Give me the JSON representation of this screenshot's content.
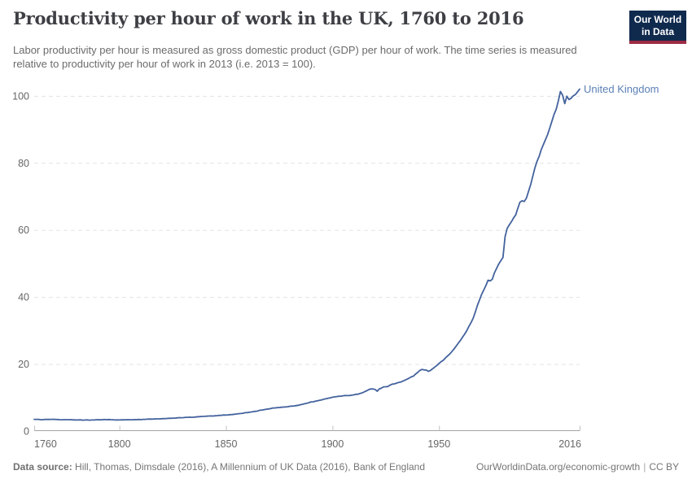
{
  "header": {
    "title": "Productivity per hour of work in the UK, 1760 to 2016",
    "subtitle": "Labor productivity per hour is measured as gross domestic product (GDP) per hour of work. The time series is measured relative to productivity per hour of work in 2013 (i.e. 2013 = 100)."
  },
  "logo": {
    "line1": "Our World",
    "line2": "in Data",
    "bg_color": "#102a4e",
    "stripe_color": "#9d2b45"
  },
  "chart_data": {
    "type": "line",
    "title": "Productivity per hour of work in the UK, 1760 to 2016",
    "xlabel": "",
    "ylabel": "",
    "xlim": [
      1760,
      2016
    ],
    "ylim": [
      0,
      105
    ],
    "x_ticks": [
      1760,
      1800,
      1850,
      1900,
      1950,
      2016
    ],
    "y_ticks": [
      0,
      20,
      40,
      60,
      80,
      100
    ],
    "grid": "horizontal-dashed",
    "legend_position": "end-of-line",
    "gridline_color": "#e3e3e3",
    "axis_color": "#a3a3a3",
    "tick_label_color": "#666666",
    "series": [
      {
        "name": "United Kingdom",
        "color": "#43629d",
        "label_color": "#5b80b5",
        "points": [
          [
            1760,
            3.5
          ],
          [
            1764,
            3.4
          ],
          [
            1768,
            3.5
          ],
          [
            1772,
            3.4
          ],
          [
            1776,
            3.4
          ],
          [
            1780,
            3.3
          ],
          [
            1784,
            3.3
          ],
          [
            1788,
            3.3
          ],
          [
            1792,
            3.4
          ],
          [
            1796,
            3.4
          ],
          [
            1800,
            3.3
          ],
          [
            1804,
            3.4
          ],
          [
            1808,
            3.4
          ],
          [
            1812,
            3.5
          ],
          [
            1816,
            3.6
          ],
          [
            1820,
            3.7
          ],
          [
            1824,
            3.8
          ],
          [
            1828,
            4.0
          ],
          [
            1832,
            4.1
          ],
          [
            1836,
            4.2
          ],
          [
            1840,
            4.4
          ],
          [
            1844,
            4.5
          ],
          [
            1848,
            4.7
          ],
          [
            1852,
            4.9
          ],
          [
            1856,
            5.2
          ],
          [
            1860,
            5.5
          ],
          [
            1864,
            5.9
          ],
          [
            1868,
            6.4
          ],
          [
            1870,
            6.6
          ],
          [
            1872,
            6.9
          ],
          [
            1874,
            7.0
          ],
          [
            1876,
            7.1
          ],
          [
            1878,
            7.2
          ],
          [
            1880,
            7.4
          ],
          [
            1882,
            7.5
          ],
          [
            1884,
            7.7
          ],
          [
            1886,
            8.0
          ],
          [
            1888,
            8.3
          ],
          [
            1890,
            8.7
          ],
          [
            1892,
            8.9
          ],
          [
            1894,
            9.2
          ],
          [
            1896,
            9.5
          ],
          [
            1898,
            9.8
          ],
          [
            1900,
            10.1
          ],
          [
            1902,
            10.3
          ],
          [
            1904,
            10.4
          ],
          [
            1906,
            10.6
          ],
          [
            1908,
            10.6
          ],
          [
            1910,
            10.8
          ],
          [
            1912,
            11.0
          ],
          [
            1914,
            11.4
          ],
          [
            1916,
            12.0
          ],
          [
            1918,
            12.6
          ],
          [
            1920,
            12.4
          ],
          [
            1921,
            11.9
          ],
          [
            1922,
            12.6
          ],
          [
            1924,
            13.2
          ],
          [
            1926,
            13.3
          ],
          [
            1928,
            14.0
          ],
          [
            1930,
            14.3
          ],
          [
            1932,
            14.6
          ],
          [
            1934,
            15.2
          ],
          [
            1936,
            15.8
          ],
          [
            1938,
            16.4
          ],
          [
            1940,
            17.5
          ],
          [
            1941,
            18.1
          ],
          [
            1942,
            18.4
          ],
          [
            1944,
            18.2
          ],
          [
            1945,
            17.8
          ],
          [
            1946,
            18.1
          ],
          [
            1948,
            19.1
          ],
          [
            1950,
            20.2
          ],
          [
            1952,
            21.1
          ],
          [
            1954,
            22.4
          ],
          [
            1956,
            23.7
          ],
          [
            1958,
            25.3
          ],
          [
            1960,
            27.0
          ],
          [
            1962,
            28.9
          ],
          [
            1964,
            31.2
          ],
          [
            1966,
            33.6
          ],
          [
            1968,
            37.5
          ],
          [
            1970,
            40.8
          ],
          [
            1972,
            43.4
          ],
          [
            1973,
            45.0
          ],
          [
            1974,
            44.8
          ],
          [
            1975,
            45.3
          ],
          [
            1976,
            47.2
          ],
          [
            1978,
            49.8
          ],
          [
            1980,
            51.8
          ],
          [
            1981,
            58.0
          ],
          [
            1982,
            60.5
          ],
          [
            1983,
            61.5
          ],
          [
            1984,
            62.5
          ],
          [
            1986,
            64.5
          ],
          [
            1987,
            66.5
          ],
          [
            1988,
            68.3
          ],
          [
            1989,
            68.7
          ],
          [
            1990,
            68.5
          ],
          [
            1991,
            69.5
          ],
          [
            1992,
            71.5
          ],
          [
            1993,
            73.5
          ],
          [
            1994,
            76.0
          ],
          [
            1995,
            78.5
          ],
          [
            1996,
            80.5
          ],
          [
            1997,
            82.0
          ],
          [
            1998,
            84.0
          ],
          [
            1999,
            85.5
          ],
          [
            2000,
            87.0
          ],
          [
            2001,
            88.5
          ],
          [
            2002,
            90.5
          ],
          [
            2003,
            92.5
          ],
          [
            2004,
            94.5
          ],
          [
            2005,
            96.0
          ],
          [
            2006,
            98.5
          ],
          [
            2007,
            101.3
          ],
          [
            2008,
            100.2
          ],
          [
            2009,
            97.7
          ],
          [
            2010,
            99.9
          ],
          [
            2011,
            98.9
          ],
          [
            2012,
            99.3
          ],
          [
            2013,
            100.0
          ],
          [
            2014,
            100.4
          ],
          [
            2015,
            101.2
          ],
          [
            2016,
            102.0
          ]
        ]
      }
    ]
  },
  "footer": {
    "datasource_label": "Data source:",
    "datasource_text": "Hill, Thomas, Dimsdale (2016), A Millennium of UK Data (2016), Bank of England",
    "url": "OurWorldinData.org/economic-growth",
    "separator": "|",
    "license": "CC BY"
  }
}
